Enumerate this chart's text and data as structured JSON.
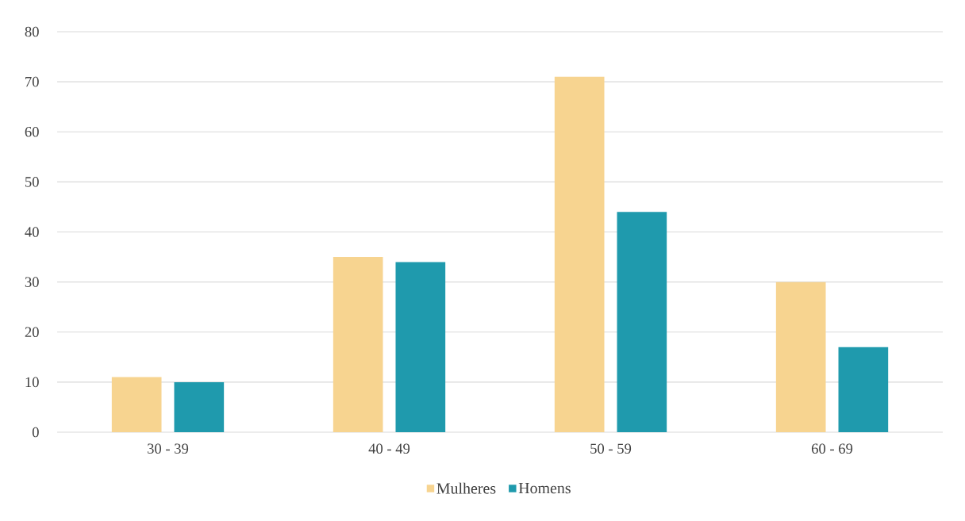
{
  "chart_data": {
    "type": "bar",
    "categories": [
      "30 - 39",
      "40 - 49",
      "50 - 59",
      "60 - 69"
    ],
    "series": [
      {
        "name": "Mulheres",
        "color": "#f7d490",
        "values": [
          11,
          35,
          71,
          30
        ]
      },
      {
        "name": "Homens",
        "color": "#1f9aad",
        "values": [
          10,
          34,
          44,
          17
        ]
      }
    ],
    "ylim": [
      0,
      80
    ],
    "yticks": [
      0,
      10,
      20,
      30,
      40,
      50,
      60,
      70,
      80
    ],
    "grid": "y",
    "legend": "bottom"
  }
}
